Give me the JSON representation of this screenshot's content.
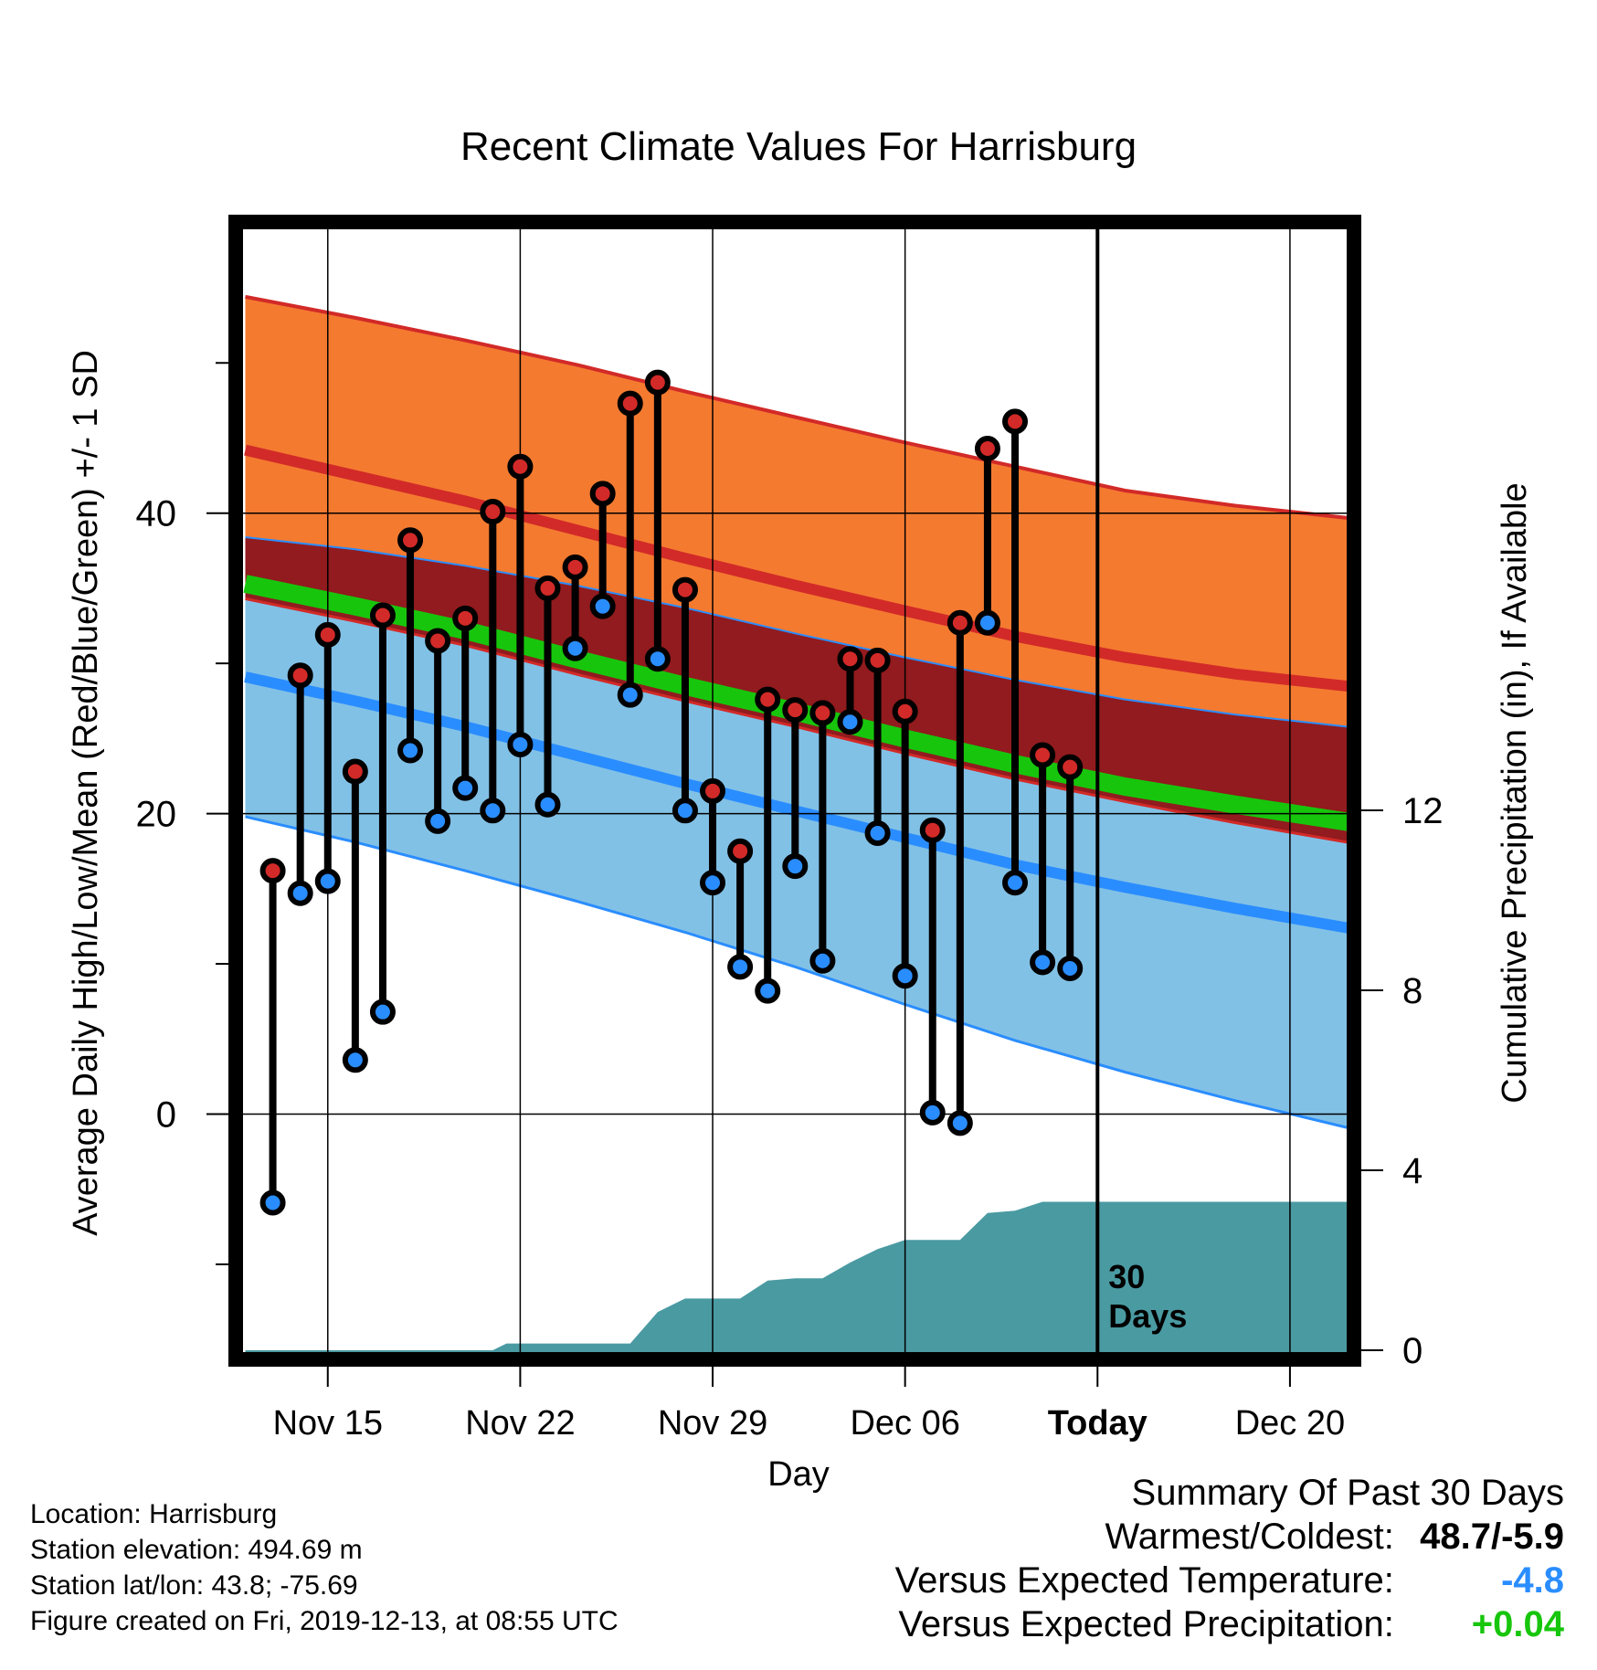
{
  "chart_data": {
    "type": "line",
    "title": "Recent Climate Values For Harrisburg",
    "xlabel": "Day",
    "ylabel_left": "Average Daily High/Low/Mean (Red/Blue/Green) +/- 1 SD",
    "ylabel_right": "Cumulative Precipitation (in), If Available",
    "x_range_days": [
      0,
      41
    ],
    "y_range_left": [
      -15.5,
      59
    ],
    "y_range_right": [
      -0.1,
      22.1
    ],
    "x_ticks": [
      {
        "day": 3,
        "label": "Nov 15",
        "bold": false
      },
      {
        "day": 10,
        "label": "Nov 22",
        "bold": false
      },
      {
        "day": 17,
        "label": "Nov 29",
        "bold": false
      },
      {
        "day": 24,
        "label": "Dec 06",
        "bold": false
      },
      {
        "day": 31,
        "label": "Today",
        "bold": true
      },
      {
        "day": 38,
        "label": "Dec 20",
        "bold": false
      }
    ],
    "y_ticks_left": [
      0,
      20,
      40
    ],
    "y_minor_ticks_left": [
      -10,
      10,
      30,
      50
    ],
    "y_ticks_right": [
      0,
      4,
      8,
      12
    ],
    "today_day": 31,
    "today_label_line1": "30",
    "today_label_line2": "Days",
    "normals": {
      "days": [
        0,
        4,
        8,
        12,
        16,
        20,
        24,
        28,
        32,
        36,
        41
      ],
      "high_upper": [
        54.4,
        53.0,
        51.5,
        49.9,
        48.1,
        46.4,
        44.7,
        43.1,
        41.5,
        40.5,
        39.5
      ],
      "high_mean": [
        44.2,
        42.5,
        40.8,
        38.9,
        37.0,
        35.2,
        33.5,
        31.8,
        30.4,
        29.3,
        28.3
      ],
      "high_lower": [
        38.4,
        37.6,
        36.5,
        35.2,
        33.7,
        32.0,
        30.4,
        28.9,
        27.6,
        26.6,
        25.6
      ],
      "mean_line": [
        35.3,
        33.8,
        32.2,
        30.3,
        28.5,
        26.8,
        25.0,
        23.3,
        21.8,
        20.6,
        19.2
      ],
      "low_upper": [
        34.3,
        32.8,
        31.2,
        29.3,
        27.5,
        25.8,
        24.0,
        22.3,
        20.8,
        19.4,
        17.8
      ],
      "low_mean": [
        29.1,
        27.5,
        25.8,
        23.9,
        22.0,
        20.2,
        18.4,
        16.6,
        15.1,
        13.7,
        12.1
      ],
      "low_lower": [
        19.8,
        18.1,
        16.2,
        14.2,
        12.1,
        9.8,
        7.3,
        4.9,
        2.8,
        0.9,
        -1.3
      ]
    },
    "daily": {
      "days": [
        1,
        2,
        3,
        4,
        5,
        6,
        7,
        8,
        9,
        10,
        11,
        12,
        13,
        14,
        15,
        16,
        17,
        18,
        19,
        20,
        21,
        22,
        23,
        24,
        25,
        26,
        27,
        28,
        29,
        30
      ],
      "high": [
        16.2,
        29.2,
        31.9,
        22.8,
        33.2,
        38.2,
        31.5,
        33.0,
        40.1,
        43.1,
        35.0,
        36.4,
        41.3,
        47.3,
        48.7,
        34.9,
        21.5,
        17.5,
        27.6,
        26.9,
        26.7,
        30.3,
        30.2,
        26.8,
        18.9,
        32.7,
        44.3,
        46.1,
        23.9,
        23.1
      ],
      "low": [
        -5.9,
        14.7,
        15.5,
        3.6,
        6.8,
        24.2,
        19.5,
        21.7,
        20.2,
        24.6,
        20.6,
        31.0,
        33.8,
        27.9,
        30.3,
        20.2,
        15.4,
        9.8,
        8.2,
        16.5,
        10.2,
        26.1,
        18.7,
        9.2,
        0.1,
        -0.6,
        32.7,
        15.4,
        10.1,
        9.7
      ]
    },
    "precip": {
      "days": [
        0,
        9,
        9.5,
        14,
        15,
        16,
        18,
        19,
        20,
        21,
        22,
        23,
        24,
        25,
        26,
        27,
        28,
        29,
        30,
        31,
        41
      ],
      "values": [
        0,
        0,
        0.15,
        0.15,
        0.85,
        1.15,
        1.15,
        1.55,
        1.6,
        1.6,
        1.95,
        2.25,
        2.45,
        2.45,
        2.45,
        3.05,
        3.1,
        3.3,
        3.3,
        3.3,
        3.3
      ]
    },
    "colors": {
      "high_band": "#f47a30",
      "high_line": "#d22a28",
      "mid_band": "#911b1e",
      "mean_line": "#17c60c",
      "low_band": "#82c1e6",
      "low_line": "#2a8dff",
      "precip": "#4a9aa2",
      "high_dot": "#d22a28",
      "low_dot": "#2a8dff"
    }
  },
  "footer": {
    "location": "Location: Harrisburg",
    "elevation": "Station elevation: 494.69 m",
    "latlon": "Station lat/lon: 43.8; -75.69",
    "created": "Figure created on Fri, 2019-12-13, at 08:55 UTC"
  },
  "summary": {
    "title": "Summary Of Past 30 Days",
    "warmest_label": "Warmest/Coldest:",
    "warmest_value": "48.7/-5.9",
    "temp_label": "Versus Expected Temperature:",
    "temp_value": "-4.8",
    "temp_color": "#2a8dff",
    "precip_label": "Versus Expected Precipitation:",
    "precip_value": "+0.04",
    "precip_color": "#17c60c"
  }
}
